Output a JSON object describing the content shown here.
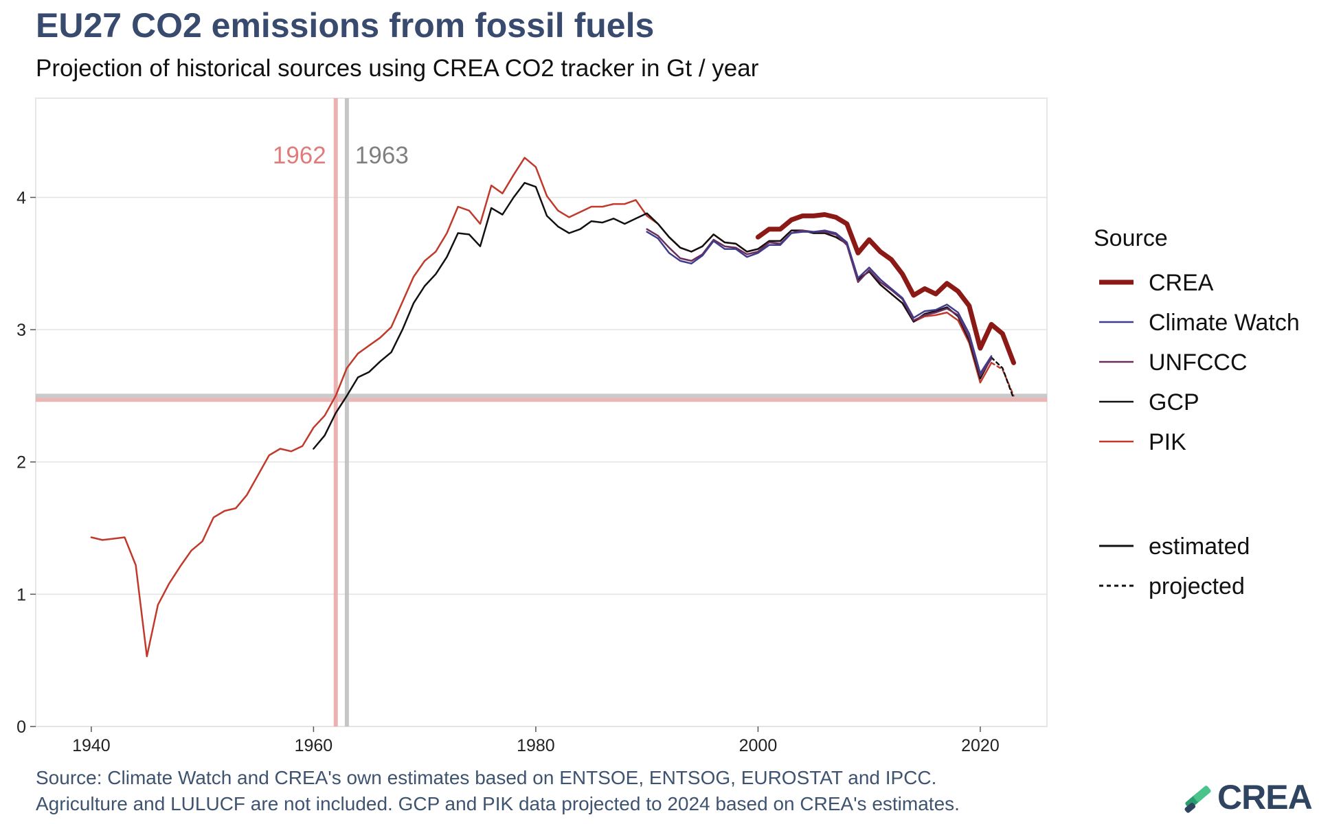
{
  "header": {
    "title": "EU27 CO2 emissions from fossil fuels",
    "subtitle": "Projection of historical sources using CREA CO2 tracker in Gt / year"
  },
  "footer": {
    "caption_line1": "Source: Climate Watch and CREA's own estimates based on ENTSOE, ENTSOG, EUROSTAT and IPCC.",
    "caption_line2": "Agriculture and LULUCF are not included. GCP and PIK data projected to 2024 based on CREA's estimates.",
    "logo_text": "CREA"
  },
  "chart_data": {
    "type": "line",
    "xlim": [
      1935,
      2026
    ],
    "ylim": [
      0,
      4.75
    ],
    "x_ticks": [
      1940,
      1960,
      1980,
      2000,
      2020
    ],
    "y_ticks": [
      0,
      1,
      2,
      3,
      4
    ],
    "grid": true,
    "legend_placement": "right",
    "legend": {
      "source_title": "Source",
      "source_entries": [
        {
          "label": "CREA",
          "color": "#8b1a17",
          "width": 7
        },
        {
          "label": "Climate Watch",
          "color": "#3f3c8c",
          "width": 2.5
        },
        {
          "label": "UNFCCC",
          "color": "#6b2d5c",
          "width": 2.5
        },
        {
          "label": "GCP",
          "color": "#111111",
          "width": 2.5
        },
        {
          "label": "PIK",
          "color": "#c0392b",
          "width": 2.5
        }
      ],
      "type_entries": [
        {
          "label": "estimated",
          "dash": false
        },
        {
          "label": "projected",
          "dash": true
        }
      ]
    },
    "reference_lines": {
      "vertical": [
        {
          "x": 1962,
          "label": "1962",
          "color": "#e8a5a5",
          "label_color": "#e07b7b"
        },
        {
          "x": 1963,
          "label": "1963",
          "color": "#bdbdbd",
          "label_color": "#7f7f7f"
        }
      ],
      "horizontal": [
        {
          "y": 2.47,
          "color": "#e8a5a5"
        },
        {
          "y": 2.5,
          "color": "#bdbdbd"
        }
      ]
    },
    "series": [
      {
        "name": "PIK",
        "color": "#c0392b",
        "width": 2.5,
        "x": [
          1940,
          1941,
          1942,
          1943,
          1944,
          1945,
          1946,
          1947,
          1948,
          1949,
          1950,
          1951,
          1952,
          1953,
          1954,
          1955,
          1956,
          1957,
          1958,
          1959,
          1960,
          1961,
          1962,
          1963,
          1964,
          1965,
          1966,
          1967,
          1968,
          1969,
          1970,
          1971,
          1972,
          1973,
          1974,
          1975,
          1976,
          1977,
          1978,
          1979,
          1980,
          1981,
          1982,
          1983,
          1984,
          1985,
          1986,
          1987,
          1988,
          1989,
          1990,
          1991,
          1992,
          1993,
          1994,
          1995,
          1996,
          1997,
          1998,
          1999,
          2000,
          2001,
          2002,
          2003,
          2004,
          2005,
          2006,
          2007,
          2008,
          2009,
          2010,
          2011,
          2012,
          2013,
          2014,
          2015,
          2016,
          2017,
          2018,
          2019,
          2020,
          2021
        ],
        "values": [
          1.43,
          1.41,
          1.42,
          1.43,
          1.22,
          0.53,
          0.92,
          1.08,
          1.21,
          1.33,
          1.4,
          1.58,
          1.63,
          1.65,
          1.75,
          1.9,
          2.05,
          2.1,
          2.08,
          2.12,
          2.26,
          2.35,
          2.5,
          2.71,
          2.82,
          2.88,
          2.94,
          3.02,
          3.21,
          3.4,
          3.52,
          3.59,
          3.73,
          3.93,
          3.9,
          3.8,
          4.09,
          4.03,
          4.17,
          4.3,
          4.23,
          4.01,
          3.9,
          3.85,
          3.89,
          3.93,
          3.93,
          3.95,
          3.95,
          3.98,
          3.86,
          3.8,
          3.7,
          3.62,
          3.59,
          3.63,
          3.72,
          3.66,
          3.65,
          3.59,
          3.61,
          3.67,
          3.67,
          3.75,
          3.75,
          3.73,
          3.73,
          3.7,
          3.65,
          3.38,
          3.44,
          3.34,
          3.27,
          3.2,
          3.06,
          3.1,
          3.11,
          3.13,
          3.07,
          2.9,
          2.6,
          2.75
        ]
      },
      {
        "name": "PIK",
        "color": "#c0392b",
        "width": 2.5,
        "dash": true,
        "x": [
          2021,
          2022,
          2023
        ],
        "values": [
          2.75,
          2.7,
          2.5
        ]
      },
      {
        "name": "GCP",
        "color": "#111111",
        "width": 2.5,
        "x": [
          1960,
          1961,
          1962,
          1963,
          1964,
          1965,
          1966,
          1967,
          1968,
          1969,
          1970,
          1971,
          1972,
          1973,
          1974,
          1975,
          1976,
          1977,
          1978,
          1979,
          1980,
          1981,
          1982,
          1983,
          1984,
          1985,
          1986,
          1987,
          1988,
          1989,
          1990,
          1991,
          1992,
          1993,
          1994,
          1995,
          1996,
          1997,
          1998,
          1999,
          2000,
          2001,
          2002,
          2003,
          2004,
          2005,
          2006,
          2007,
          2008,
          2009,
          2010,
          2011,
          2012,
          2013,
          2014,
          2015,
          2016,
          2017,
          2018,
          2019,
          2020,
          2021
        ],
        "values": [
          2.1,
          2.2,
          2.37,
          2.5,
          2.64,
          2.68,
          2.76,
          2.83,
          3.0,
          3.2,
          3.33,
          3.42,
          3.55,
          3.73,
          3.72,
          3.63,
          3.92,
          3.87,
          4.0,
          4.11,
          4.08,
          3.86,
          3.78,
          3.73,
          3.76,
          3.82,
          3.81,
          3.84,
          3.8,
          3.84,
          3.88,
          3.8,
          3.7,
          3.62,
          3.59,
          3.63,
          3.72,
          3.66,
          3.65,
          3.59,
          3.61,
          3.67,
          3.67,
          3.75,
          3.75,
          3.73,
          3.73,
          3.7,
          3.65,
          3.38,
          3.44,
          3.34,
          3.27,
          3.2,
          3.06,
          3.12,
          3.14,
          3.17,
          3.1,
          2.92,
          2.63,
          2.79
        ]
      },
      {
        "name": "GCP",
        "color": "#111111",
        "width": 2.5,
        "dash": true,
        "x": [
          2021,
          2022,
          2023
        ],
        "values": [
          2.79,
          2.71,
          2.48
        ]
      },
      {
        "name": "UNFCCC",
        "color": "#6b2d5c",
        "width": 2.5,
        "x": [
          1990,
          1991,
          1992,
          1993,
          1994,
          1995,
          1996,
          1997,
          1998,
          1999,
          2000,
          2001,
          2002,
          2003,
          2004,
          2005,
          2006,
          2007,
          2008,
          2009,
          2010,
          2011,
          2012,
          2013,
          2014,
          2015,
          2016,
          2017,
          2018,
          2019,
          2020,
          2021
        ],
        "values": [
          3.76,
          3.71,
          3.62,
          3.54,
          3.52,
          3.57,
          3.68,
          3.63,
          3.62,
          3.57,
          3.59,
          3.66,
          3.65,
          3.73,
          3.75,
          3.74,
          3.74,
          3.72,
          3.64,
          3.36,
          3.45,
          3.36,
          3.3,
          3.23,
          3.07,
          3.11,
          3.13,
          3.16,
          3.11,
          2.94,
          2.65,
          2.78
        ]
      },
      {
        "name": "Climate Watch",
        "color": "#3f3c8c",
        "width": 2.5,
        "x": [
          1990,
          1991,
          1992,
          1993,
          1994,
          1995,
          1996,
          1997,
          1998,
          1999,
          2000,
          2001,
          2002,
          2003,
          2004,
          2005,
          2006,
          2007,
          2008,
          2009,
          2010,
          2011,
          2012,
          2013,
          2014,
          2015,
          2016,
          2017,
          2018,
          2019,
          2020,
          2021
        ],
        "values": [
          3.74,
          3.69,
          3.58,
          3.52,
          3.5,
          3.56,
          3.67,
          3.61,
          3.61,
          3.55,
          3.58,
          3.64,
          3.64,
          3.73,
          3.74,
          3.74,
          3.75,
          3.73,
          3.66,
          3.39,
          3.47,
          3.38,
          3.31,
          3.24,
          3.09,
          3.14,
          3.15,
          3.19,
          3.13,
          2.97,
          2.67,
          2.8
        ]
      },
      {
        "name": "CREA",
        "color": "#8b1a17",
        "width": 7,
        "x": [
          2000,
          2001,
          2002,
          2003,
          2004,
          2005,
          2006,
          2007,
          2008,
          2009,
          2010,
          2011,
          2012,
          2013,
          2014,
          2015,
          2016,
          2017,
          2018,
          2019,
          2020,
          2021,
          2022,
          2023
        ],
        "values": [
          3.7,
          3.76,
          3.76,
          3.83,
          3.86,
          3.86,
          3.87,
          3.85,
          3.8,
          3.58,
          3.68,
          3.59,
          3.53,
          3.42,
          3.26,
          3.31,
          3.27,
          3.35,
          3.29,
          3.18,
          2.86,
          3.04,
          2.97,
          2.75
        ]
      }
    ]
  }
}
